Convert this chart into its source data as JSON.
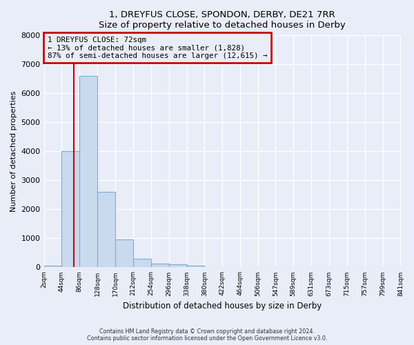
{
  "title": "1, DREYFUS CLOSE, SPONDON, DERBY, DE21 7RR",
  "subtitle": "Size of property relative to detached houses in Derby",
  "xlabel": "Distribution of detached houses by size in Derby",
  "ylabel": "Number of detached properties",
  "bin_edges": [
    2,
    44,
    86,
    128,
    170,
    212,
    254,
    296,
    338,
    380,
    422,
    464,
    506,
    547,
    589,
    631,
    673,
    715,
    757,
    799,
    841
  ],
  "bin_counts": [
    50,
    4000,
    6600,
    2600,
    950,
    300,
    120,
    100,
    50,
    0,
    0,
    0,
    0,
    0,
    0,
    0,
    0,
    0,
    0,
    0
  ],
  "bar_facecolor": "#c9d9ee",
  "bar_edgecolor": "#7bafd4",
  "property_size": 72,
  "vline_color": "#cc0000",
  "annotation_line1": "1 DREYFUS CLOSE: 72sqm",
  "annotation_line2": "← 13% of detached houses are smaller (1,828)",
  "annotation_line3": "87% of semi-detached houses are larger (12,615) →",
  "ylim": [
    0,
    8000
  ],
  "yticks": [
    0,
    1000,
    2000,
    3000,
    4000,
    5000,
    6000,
    7000,
    8000
  ],
  "background_color": "#e8edf8",
  "grid_color": "#ffffff",
  "footer_line1": "Contains HM Land Registry data © Crown copyright and database right 2024.",
  "footer_line2": "Contains public sector information licensed under the Open Government Licence v3.0."
}
